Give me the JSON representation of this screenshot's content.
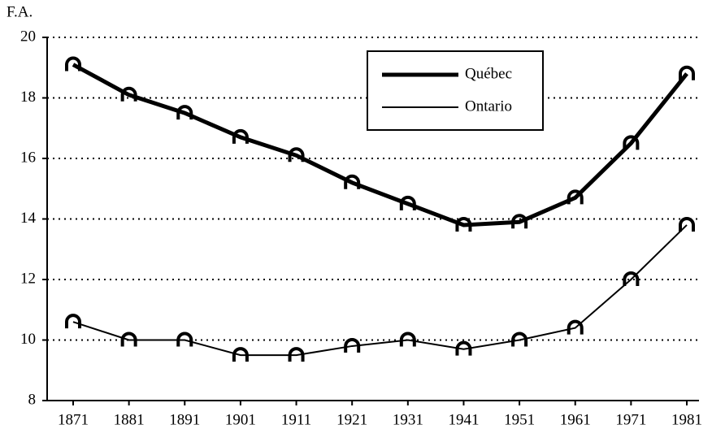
{
  "chart_data": {
    "type": "line",
    "y_label": "F.A.",
    "categories": [
      "1871",
      "1881",
      "1891",
      "1901",
      "1911",
      "1921",
      "1931",
      "1941",
      "1951",
      "1961",
      "1971",
      "1981"
    ],
    "series": [
      {
        "name": "Québec",
        "color": "#000000",
        "values": [
          19.1,
          18.1,
          17.5,
          16.7,
          16.1,
          15.2,
          14.5,
          13.8,
          13.9,
          14.7,
          16.5,
          18.8
        ]
      },
      {
        "name": "Ontario",
        "color": "#000000",
        "values": [
          10.6,
          10.0,
          10.0,
          9.5,
          9.5,
          9.8,
          10.0,
          9.7,
          10.0,
          10.4,
          12.0,
          13.8
        ]
      }
    ],
    "ylim": [
      8,
      20
    ],
    "yticks": [
      8,
      10,
      12,
      14,
      16,
      18,
      20
    ],
    "grid": true,
    "legend": "upper right"
  }
}
